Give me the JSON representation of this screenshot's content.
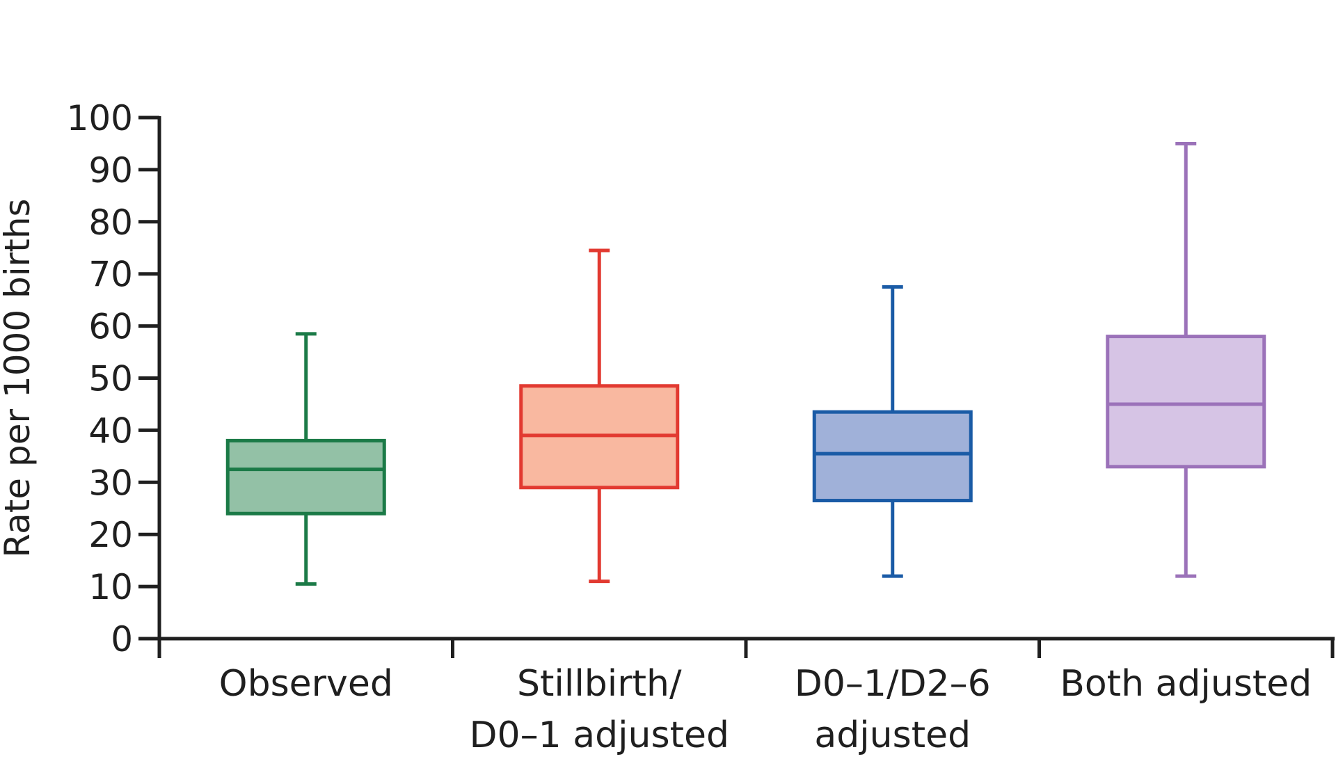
{
  "chart_data": {
    "type": "boxplot",
    "title": "",
    "xlabel": "",
    "ylabel": "Rate per 1000 births",
    "ylim": [
      0,
      100
    ],
    "yticks": [
      "0",
      "10",
      "20",
      "30",
      "40",
      "50",
      "60",
      "70",
      "80",
      "90",
      "100"
    ],
    "grid": false,
    "categories": [
      {
        "label_lines": [
          "Observed"
        ]
      },
      {
        "label_lines": [
          "Stillbirth/",
          "D0–1 adjusted"
        ]
      },
      {
        "label_lines": [
          "D0–1/D2–6",
          "adjusted"
        ]
      },
      {
        "label_lines": [
          "Both adjusted"
        ]
      }
    ],
    "series": [
      {
        "name": "Observed",
        "whisker_low": 10.5,
        "q1": 24,
        "median": 32.5,
        "q3": 38,
        "whisker_high": 58.5,
        "stroke": "#1b7a47",
        "fill": "#93c1a6"
      },
      {
        "name": "Stillbirth/D0–1 adjusted",
        "whisker_low": 11,
        "q1": 29,
        "median": 39,
        "q3": 48.5,
        "whisker_high": 74.5,
        "stroke": "#e23a31",
        "fill": "#f9b8a0"
      },
      {
        "name": "D0–1/D2–6 adjusted",
        "whisker_low": 12,
        "q1": 26.5,
        "median": 35.5,
        "q3": 43.5,
        "whisker_high": 67.5,
        "stroke": "#1a5ba6",
        "fill": "#a0b1d9"
      },
      {
        "name": "Both adjusted",
        "whisker_low": 12,
        "q1": 33,
        "median": 45,
        "q3": 58,
        "whisker_high": 95,
        "stroke": "#9b72b9",
        "fill": "#d6c4e5"
      }
    ],
    "axis_color": "#1f1f1f"
  }
}
